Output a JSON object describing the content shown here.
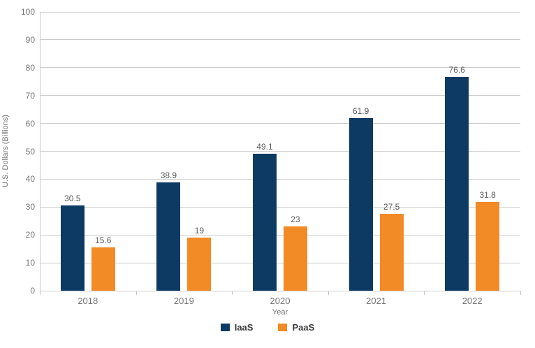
{
  "chart_data": {
    "type": "bar",
    "title": "",
    "xlabel": "Year",
    "ylabel": "U.S. Dollars (Billions)",
    "categories": [
      "2018",
      "2019",
      "2020",
      "2021",
      "2022"
    ],
    "series": [
      {
        "name": "IaaS",
        "color": "#0d3a63",
        "values": [
          30.5,
          38.9,
          49.1,
          61.9,
          76.6
        ]
      },
      {
        "name": "PaaS",
        "color": "#f28a26",
        "values": [
          15.6,
          19,
          23,
          27.5,
          31.8
        ]
      }
    ],
    "ylim": [
      0,
      100
    ],
    "ytick_step": 10,
    "ytick_labels": [
      "0",
      "10",
      "20",
      "30",
      "40",
      "50",
      "60",
      "70",
      "80",
      "90",
      "100"
    ],
    "grid": true,
    "legend_position": "bottom",
    "value_labels_shown": true
  },
  "legend": {
    "items": [
      {
        "label": "IaaS",
        "color": "#0d3a63"
      },
      {
        "label": "PaaS",
        "color": "#f28a26"
      }
    ]
  },
  "colors": {
    "background": "#ffffff",
    "gridline": "#cccccc",
    "axis_text": "#757575",
    "value_label_text": "#58595b",
    "legend_text": "#3c3c3c",
    "iaas_bar": "#0d3a63",
    "paas_bar": "#f28a26"
  }
}
